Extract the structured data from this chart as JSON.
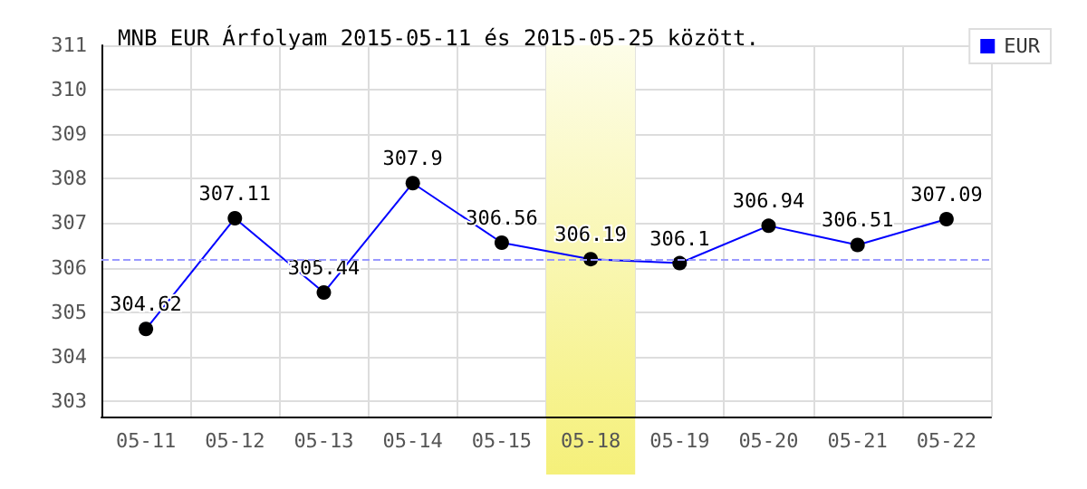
{
  "chart_data": {
    "type": "line",
    "title": "MNB EUR Árfolyam 2015-05-11 és 2015-05-25 között.",
    "categories": [
      "05-11",
      "05-12",
      "05-13",
      "05-14",
      "05-15",
      "05-18",
      "05-19",
      "05-20",
      "05-21",
      "05-22"
    ],
    "series": [
      {
        "name": "EUR",
        "color": "#0000ff",
        "values": [
          304.62,
          307.11,
          305.44,
          307.9,
          306.56,
          306.19,
          306.1,
          306.94,
          306.51,
          307.09
        ]
      }
    ],
    "ylim": [
      302.65,
      311
    ],
    "yticks": [
      303,
      304,
      305,
      306,
      307,
      308,
      309,
      310,
      311
    ],
    "grid": true,
    "legend": "top right",
    "marker": "circle",
    "line_style": "solid",
    "data_labels": true,
    "ref_lines": [
      {
        "axis": "y",
        "value": 306.2,
        "color": "#9999ff",
        "line_style": "dashed"
      }
    ],
    "bands": [
      {
        "axis": "x",
        "from": "05-18",
        "to": "05-18",
        "color": "#f5f07a"
      }
    ]
  }
}
